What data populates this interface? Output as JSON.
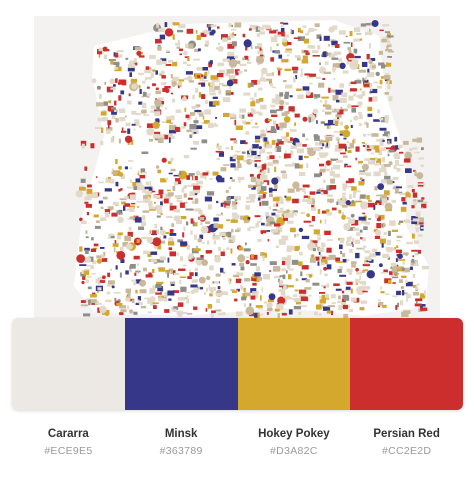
{
  "palette": [
    {
      "name": "Cararra",
      "hex_label": "#ECE9E5",
      "color": "#ECE9E5"
    },
    {
      "name": "Minsk",
      "hex_label": "#363789",
      "color": "#363789"
    },
    {
      "name": "Hokey Pokey",
      "hex_label": "#D3A82C",
      "color": "#D3A82C"
    },
    {
      "name": "Persian Red",
      "hex_label": "#CC2E2D",
      "color": "#CC2E2D"
    }
  ],
  "map": {
    "background": "#f3f2f0",
    "block_colors": [
      "#CC2E2D",
      "#363789",
      "#D3A82C",
      "#E2D9C9",
      "#C9B89A",
      "#8f8f8a",
      "#ECE9E5"
    ]
  }
}
